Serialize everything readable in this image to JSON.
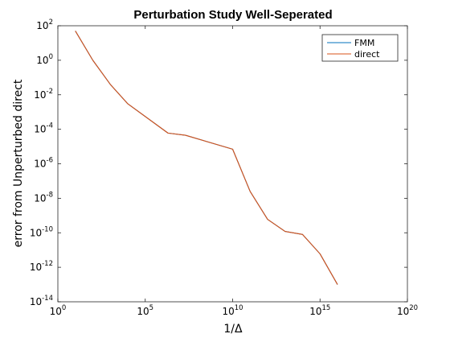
{
  "chart_data": {
    "type": "line",
    "title": "Perturbation Study Well-Seperated",
    "xlabel": "1/Δ",
    "ylabel": "error from Unperturbed direct",
    "x_scale": "log",
    "y_scale": "log",
    "xlim": [
      1,
      1e+20
    ],
    "ylim": [
      1e-14,
      100
    ],
    "x_ticks": [
      {
        "base": "10",
        "exp": "0",
        "value": 1
      },
      {
        "base": "10",
        "exp": "5",
        "value": 100000.0
      },
      {
        "base": "10",
        "exp": "10",
        "value": 10000000000.0
      },
      {
        "base": "10",
        "exp": "15",
        "value": 1000000000000000.0
      },
      {
        "base": "10",
        "exp": "20",
        "value": 1e+20
      }
    ],
    "y_ticks": [
      {
        "base": "10",
        "exp": "2",
        "value": 100
      },
      {
        "base": "10",
        "exp": "0",
        "value": 1
      },
      {
        "base": "10",
        "exp": "-2",
        "value": 0.01
      },
      {
        "base": "10",
        "exp": "-4",
        "value": 0.0001
      },
      {
        "base": "10",
        "exp": "-6",
        "value": 1e-06
      },
      {
        "base": "10",
        "exp": "-8",
        "value": 1e-08
      },
      {
        "base": "10",
        "exp": "-10",
        "value": 1e-10
      },
      {
        "base": "10",
        "exp": "-12",
        "value": 1e-12
      },
      {
        "base": "10",
        "exp": "-14",
        "value": 1e-14
      }
    ],
    "grid": false,
    "legend_position": "top-right",
    "series": [
      {
        "name": "FMM",
        "color": "#0072bd",
        "points": [
          [
            10,
            50
          ],
          [
            100,
            1
          ],
          [
            1000,
            0.04
          ],
          [
            10000,
            0.003
          ],
          [
            2000000.0,
            6e-05
          ],
          [
            20000000.0,
            4.5e-05
          ],
          [
            10000000000.0,
            7e-06
          ],
          [
            100000000000.0,
            2.5e-08
          ],
          [
            1000000000000.0,
            6e-10
          ],
          [
            10000000000000.0,
            1.2e-10
          ],
          [
            100000000000000.0,
            8e-11
          ],
          [
            1000000000000000.0,
            6e-12
          ],
          [
            1e+16,
            1e-13
          ]
        ]
      },
      {
        "name": "direct",
        "color": "#d95319",
        "points": [
          [
            10,
            50
          ],
          [
            100,
            1
          ],
          [
            1000,
            0.04
          ],
          [
            10000,
            0.003
          ],
          [
            2000000.0,
            6e-05
          ],
          [
            20000000.0,
            4.5e-05
          ],
          [
            10000000000.0,
            7e-06
          ],
          [
            100000000000.0,
            2.5e-08
          ],
          [
            1000000000000.0,
            6e-10
          ],
          [
            10000000000000.0,
            1.2e-10
          ],
          [
            100000000000000.0,
            8e-11
          ],
          [
            1000000000000000.0,
            6e-12
          ],
          [
            1e+16,
            1e-13
          ]
        ]
      }
    ]
  }
}
